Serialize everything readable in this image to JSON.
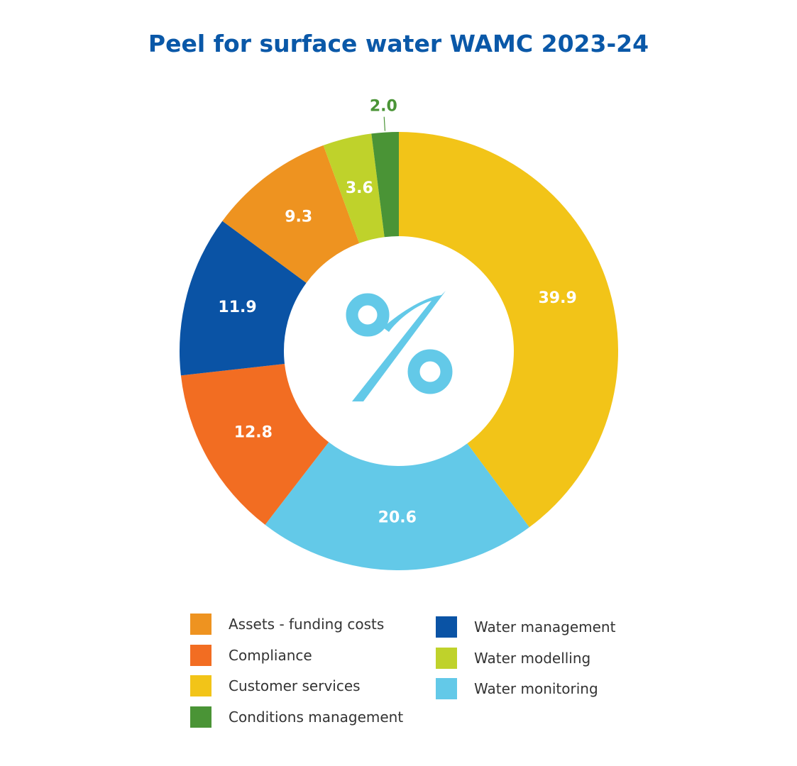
{
  "chart_data": {
    "type": "pie",
    "title": "Peel for surface water WAMC 2023-24",
    "donut": true,
    "center_icon": "percent-icon",
    "slices": [
      {
        "name": "Customer services",
        "value": 39.9,
        "label": "39.9",
        "color": "#f2c418"
      },
      {
        "name": "Water monitoring",
        "value": 20.6,
        "label": "20.6",
        "color": "#63c9e8"
      },
      {
        "name": "Compliance",
        "value": 12.8,
        "label": "12.8",
        "color": "#f26d22"
      },
      {
        "name": "Water management",
        "value": 11.9,
        "label": "11.9",
        "color": "#0a53a5"
      },
      {
        "name": "Assets - funding costs",
        "value": 9.3,
        "label": "9.3",
        "color": "#ee9320"
      },
      {
        "name": "Water modelling",
        "value": 3.6,
        "label": "3.6",
        "color": "#bfd22b"
      },
      {
        "name": "Conditions management",
        "value": 2.0,
        "label": "2.0",
        "color": "#4a9436"
      }
    ],
    "legend": {
      "columns": [
        [
          "Assets - funding costs",
          "Compliance",
          "Customer services",
          "Conditions management"
        ],
        [
          "Water management",
          "Water modelling",
          "Water monitoring"
        ]
      ],
      "colors": {
        "Assets - funding costs": "#ee9320",
        "Compliance": "#f26d22",
        "Customer services": "#f2c418",
        "Conditions management": "#4a9436",
        "Water management": "#0a53a5",
        "Water modelling": "#bfd22b",
        "Water monitoring": "#63c9e8"
      }
    }
  },
  "colors": {
    "title": "#0a58a8",
    "icon": "#63c9e8",
    "outside_label": "#4a9436"
  }
}
